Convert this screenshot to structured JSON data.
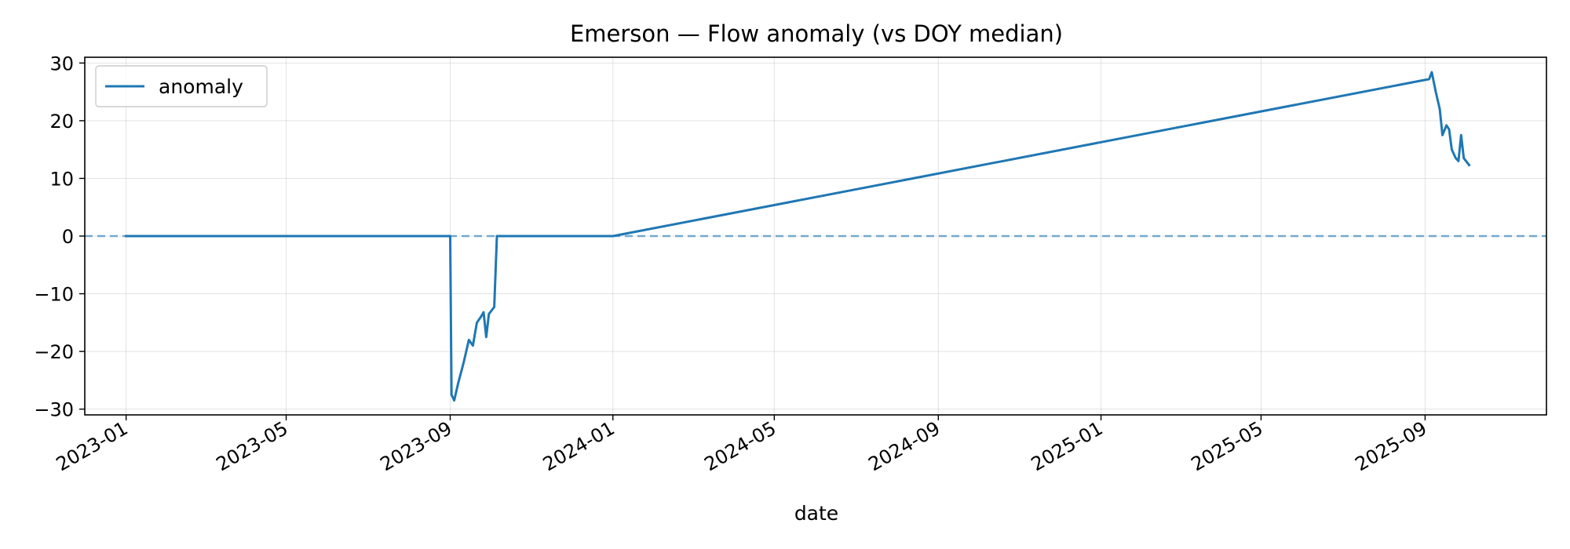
{
  "chart_data": {
    "type": "line",
    "title": "Emerson — Flow anomaly (vs DOY median)",
    "xlabel": "date",
    "ylabel": "",
    "x_type": "date",
    "xlim": [
      "2022-12-01",
      "2025-12-01"
    ],
    "ylim": [
      -31,
      31
    ],
    "x_ticks": [
      "2023-01-01",
      "2023-05-01",
      "2023-09-01",
      "2024-01-01",
      "2024-05-01",
      "2024-09-01",
      "2025-01-01",
      "2025-05-01",
      "2025-09-01"
    ],
    "x_tick_labels": [
      "2023-01",
      "2023-05",
      "2023-09",
      "2024-01",
      "2024-05",
      "2024-09",
      "2025-01",
      "2025-05",
      "2025-09"
    ],
    "y_ticks": [
      30,
      20,
      10,
      0,
      -10,
      -20,
      -30
    ],
    "y_tick_labels": [
      "30",
      "20",
      "10",
      "0",
      "−10",
      "−20",
      "−30"
    ],
    "grid": true,
    "legend": {
      "placement": "upper left",
      "entries": [
        "anomaly"
      ]
    },
    "reference_line": {
      "y": 0,
      "style": "dashed",
      "color": "#1f77b4"
    },
    "series": [
      {
        "name": "anomaly",
        "color": "#1f77b4",
        "points": [
          {
            "x": "2023-01-01",
            "y": 0
          },
          {
            "x": "2023-09-01",
            "y": 0
          },
          {
            "x": "2023-09-02",
            "y": -27.5
          },
          {
            "x": "2023-09-04",
            "y": -28.5
          },
          {
            "x": "2023-09-07",
            "y": -25.5
          },
          {
            "x": "2023-09-11",
            "y": -22.0
          },
          {
            "x": "2023-09-15",
            "y": -18.0
          },
          {
            "x": "2023-09-18",
            "y": -19.0
          },
          {
            "x": "2023-09-21",
            "y": -15.0
          },
          {
            "x": "2023-09-24",
            "y": -14.0
          },
          {
            "x": "2023-09-26",
            "y": -13.2
          },
          {
            "x": "2023-09-28",
            "y": -17.5
          },
          {
            "x": "2023-09-30",
            "y": -13.5
          },
          {
            "x": "2023-10-04",
            "y": -12.3
          },
          {
            "x": "2023-10-06",
            "y": 0
          },
          {
            "x": "2024-01-01",
            "y": 0
          },
          {
            "x": "2025-09-04",
            "y": 27.2
          },
          {
            "x": "2025-09-06",
            "y": 28.4
          },
          {
            "x": "2025-09-09",
            "y": 25.0
          },
          {
            "x": "2025-09-12",
            "y": 22.0
          },
          {
            "x": "2025-09-14",
            "y": 17.5
          },
          {
            "x": "2025-09-17",
            "y": 19.2
          },
          {
            "x": "2025-09-19",
            "y": 18.5
          },
          {
            "x": "2025-09-21",
            "y": 15.0
          },
          {
            "x": "2025-09-24",
            "y": 13.5
          },
          {
            "x": "2025-09-26",
            "y": 13.0
          },
          {
            "x": "2025-09-28",
            "y": 17.5
          },
          {
            "x": "2025-09-30",
            "y": 13.5
          },
          {
            "x": "2025-10-04",
            "y": 12.3
          }
        ]
      }
    ]
  }
}
